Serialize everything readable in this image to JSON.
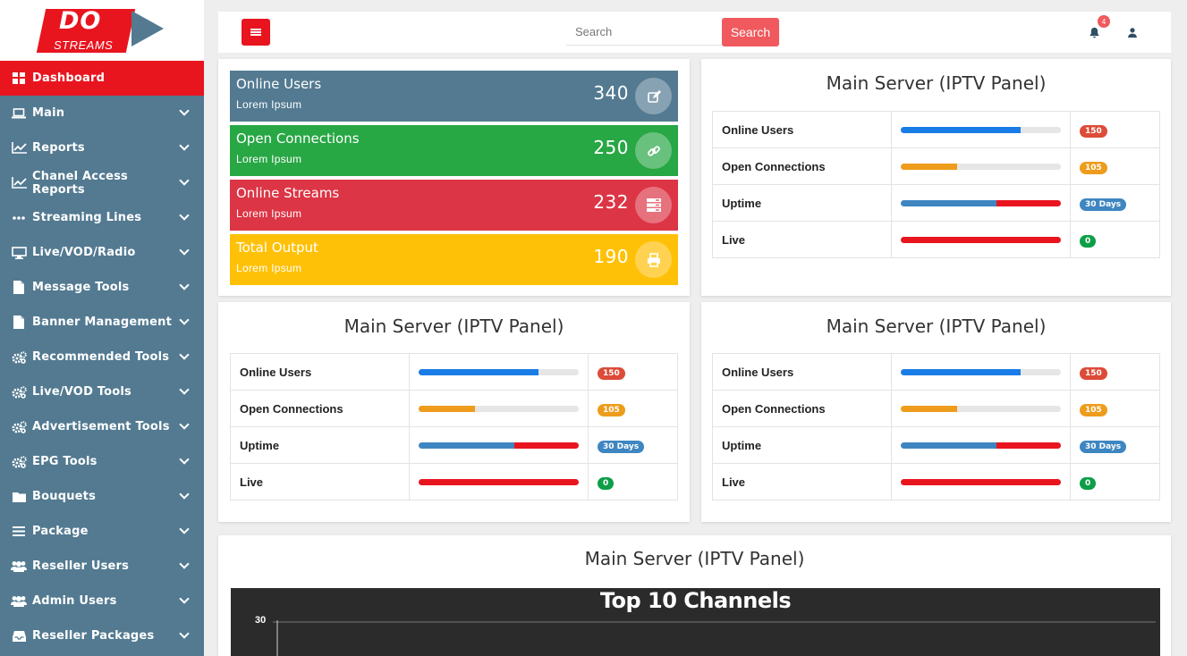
{
  "logo": {
    "line1": "DO",
    "line2": "STREAMS"
  },
  "colors": {
    "accent": "#e8151f",
    "sidebar": "#537a91",
    "blue": "#1a7ce6",
    "orange": "#ee9c1b",
    "steel": "#3e86c1",
    "green": "#0e9e47",
    "pill_red": "#dd4b39"
  },
  "sidebar": {
    "items": [
      {
        "label": "Dashboard",
        "icon": "dashboard-icon",
        "active": true
      },
      {
        "label": "Main",
        "icon": "laptop-icon"
      },
      {
        "label": "Reports",
        "icon": "line-chart-icon"
      },
      {
        "label": "Chanel Access Reports",
        "icon": "line-chart-icon"
      },
      {
        "label": "Streaming Lines",
        "icon": "ellipsis-icon"
      },
      {
        "label": "Live/VOD/Radio",
        "icon": "desktop-icon"
      },
      {
        "label": "Message Tools",
        "icon": "file-icon"
      },
      {
        "label": "Banner Management",
        "icon": "file-icon"
      },
      {
        "label": "Recommended Tools",
        "icon": "cogs-icon"
      },
      {
        "label": "Live/VOD Tools",
        "icon": "cogs-icon"
      },
      {
        "label": "Advertisement Tools",
        "icon": "cogs-icon"
      },
      {
        "label": "EPG Tools",
        "icon": "cogs-icon"
      },
      {
        "label": "Bouquets",
        "icon": "folder-icon"
      },
      {
        "label": "Package",
        "icon": "bars-icon"
      },
      {
        "label": "Reseller Users",
        "icon": "users-icon"
      },
      {
        "label": "Admin Users",
        "icon": "users-icon"
      },
      {
        "label": "Reseller Packages",
        "icon": "inbox-icon"
      }
    ]
  },
  "header": {
    "search_placeholder": "Search",
    "search_button": "Search",
    "notifications_count": "4"
  },
  "stats": [
    {
      "title": "Online Users",
      "sub": "Lorem Ipsum",
      "value": "340",
      "icon": "edit-icon",
      "color": "#537a91"
    },
    {
      "title": "Open Connections",
      "sub": "Lorem Ipsum",
      "value": "250",
      "icon": "link-icon",
      "color": "#28a745"
    },
    {
      "title": "Online Streams",
      "sub": "Lorem Ipsum",
      "value": "232",
      "icon": "server-icon",
      "color": "#dc3545"
    },
    {
      "title": "Total Output",
      "sub": "Lorem Ipsum",
      "value": "190",
      "icon": "print-icon",
      "color": "#ffc107"
    }
  ],
  "panels": [
    {
      "title": "Main Server (IPTV Panel)",
      "rows": [
        {
          "label": "Online Users",
          "badge": "150"
        },
        {
          "label": "Open Connections",
          "badge": "105"
        },
        {
          "label": "Uptime",
          "badge": "30 Days"
        },
        {
          "label": "Live",
          "badge": "0"
        }
      ]
    },
    {
      "title": "Main Server (IPTV Panel)",
      "rows": [
        {
          "label": "Online Users",
          "badge": "150"
        },
        {
          "label": "Open Connections",
          "badge": "105"
        },
        {
          "label": "Uptime",
          "badge": "30 Days"
        },
        {
          "label": "Live",
          "badge": "0"
        }
      ]
    },
    {
      "title": "Main Server (IPTV Panel)",
      "rows": [
        {
          "label": "Online Users",
          "badge": "150"
        },
        {
          "label": "Open Connections",
          "badge": "105"
        },
        {
          "label": "Uptime",
          "badge": "30 Days"
        },
        {
          "label": "Live",
          "badge": "0"
        }
      ]
    }
  ],
  "bars": {
    "online_users": 0.75,
    "open_connections": 0.35,
    "uptime_split": 0.6,
    "live": 1.0
  },
  "bottom": {
    "title": "Main Server (IPTV Panel)",
    "chart_data": {
      "type": "bar",
      "title": "Top 10 Channels",
      "ytick_top": "30"
    }
  }
}
